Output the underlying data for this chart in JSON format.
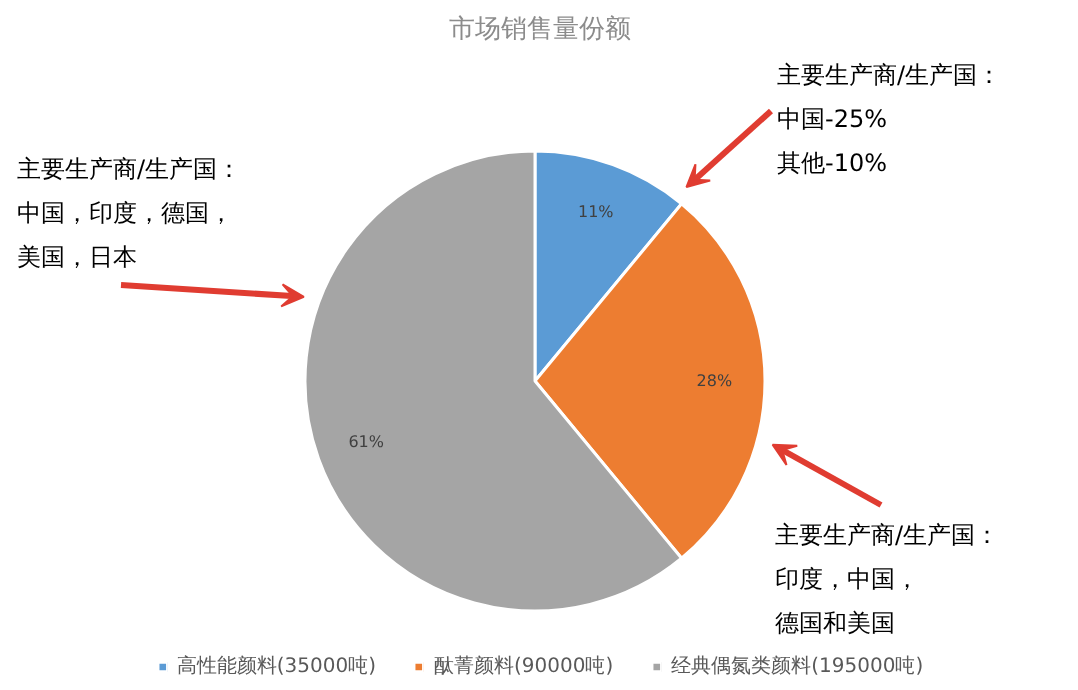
{
  "chart_data": {
    "type": "pie",
    "title": "市场销售量份额",
    "categories": [
      "高性能颜料(35000吨)",
      "酞菁颜料(90000吨)",
      "经典偶氮类颜料(195000吨)"
    ],
    "values": [
      11,
      28,
      61
    ],
    "value_labels": [
      "11%",
      "28%",
      "61%"
    ],
    "colors": [
      "#5b9bd5",
      "#ed7d31",
      "#a5a5a5"
    ],
    "legend": "bottom",
    "annotations": [
      "主要生产商/生产国：",
      "中国-25%",
      "其他-10%",
      "主要生产商/生产国：",
      "中国，印度，德国，",
      "美国，日本",
      "主要生产商/生产国：",
      "印度，中国，",
      "德国和美国"
    ]
  }
}
